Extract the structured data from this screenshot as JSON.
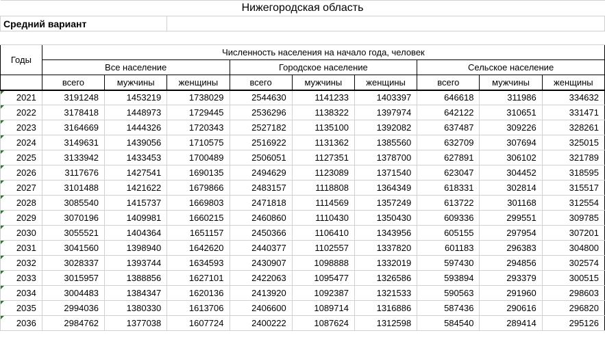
{
  "title": "Нижегородская область",
  "subtitle": "Средний вариант",
  "header_main": "Численность населения на начало года, человек",
  "header_years": "Годы",
  "groups": [
    "Все население",
    "Городское население",
    "Сельское население"
  ],
  "subcols": [
    "всего",
    "мужчины",
    "женщины"
  ],
  "rows": [
    {
      "year": "2021",
      "v": [
        "3191248",
        "1453219",
        "1738029",
        "2544630",
        "1141233",
        "1403397",
        "646618",
        "311986",
        "334632"
      ]
    },
    {
      "year": "2022",
      "v": [
        "3178418",
        "1448973",
        "1729445",
        "2536296",
        "1138322",
        "1397974",
        "642122",
        "310651",
        "331471"
      ]
    },
    {
      "year": "2023",
      "v": [
        "3164669",
        "1444326",
        "1720343",
        "2527182",
        "1135100",
        "1392082",
        "637487",
        "309226",
        "328261"
      ]
    },
    {
      "year": "2024",
      "v": [
        "3149631",
        "1439056",
        "1710575",
        "2516922",
        "1131362",
        "1385560",
        "632709",
        "307694",
        "325015"
      ]
    },
    {
      "year": "2025",
      "v": [
        "3133942",
        "1433453",
        "1700489",
        "2506051",
        "1127351",
        "1378700",
        "627891",
        "306102",
        "321789"
      ]
    },
    {
      "year": "2026",
      "v": [
        "3117676",
        "1427541",
        "1690135",
        "2494629",
        "1123089",
        "1371540",
        "623047",
        "304452",
        "318595"
      ]
    },
    {
      "year": "2027",
      "v": [
        "3101488",
        "1421622",
        "1679866",
        "2483157",
        "1118808",
        "1364349",
        "618331",
        "302814",
        "315517"
      ]
    },
    {
      "year": "2028",
      "v": [
        "3085540",
        "1415737",
        "1669803",
        "2471818",
        "1114569",
        "1357249",
        "613722",
        "301168",
        "312554"
      ]
    },
    {
      "year": "2029",
      "v": [
        "3070196",
        "1409981",
        "1660215",
        "2460860",
        "1110430",
        "1350430",
        "609336",
        "299551",
        "309785"
      ]
    },
    {
      "year": "2030",
      "v": [
        "3055521",
        "1404364",
        "1651157",
        "2450366",
        "1106410",
        "1343956",
        "605155",
        "297954",
        "307201"
      ]
    },
    {
      "year": "2031",
      "v": [
        "3041560",
        "1398940",
        "1642620",
        "2440377",
        "1102557",
        "1337820",
        "601183",
        "296383",
        "304800"
      ]
    },
    {
      "year": "2032",
      "v": [
        "3028337",
        "1393744",
        "1634593",
        "2430907",
        "1098888",
        "1332019",
        "597430",
        "294856",
        "302574"
      ]
    },
    {
      "year": "2033",
      "v": [
        "3015957",
        "1388856",
        "1627101",
        "2422063",
        "1095477",
        "1326586",
        "593894",
        "293379",
        "300515"
      ]
    },
    {
      "year": "2034",
      "v": [
        "3004483",
        "1384347",
        "1620136",
        "2413920",
        "1092387",
        "1321533",
        "590563",
        "291960",
        "298603"
      ]
    },
    {
      "year": "2035",
      "v": [
        "2994036",
        "1380330",
        "1613706",
        "2406600",
        "1089714",
        "1316886",
        "587436",
        "290616",
        "296820"
      ]
    },
    {
      "year": "2036",
      "v": [
        "2984762",
        "1377038",
        "1607724",
        "2400222",
        "1087624",
        "1312598",
        "584540",
        "289414",
        "295126"
      ]
    }
  ]
}
